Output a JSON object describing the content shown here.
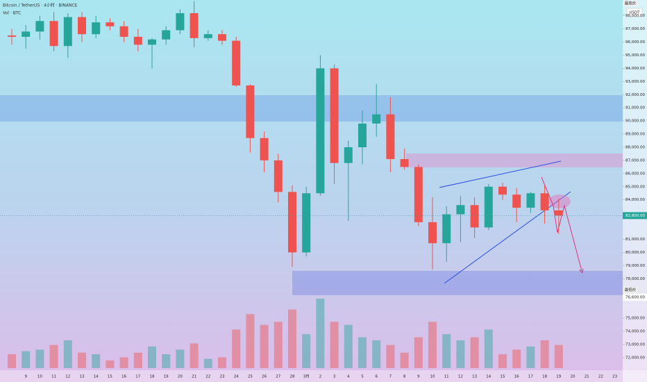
{
  "chart_data": {
    "type": "candlestick",
    "title": "Bitcoin / TetherUS · 4小时 · BINANCE",
    "subtitle": "Vol · BTC",
    "currency": "USDT",
    "high_tag": "最高价",
    "low_tag": "最低价",
    "low_price": {
      "value": 76600,
      "label": "76,600.00"
    },
    "last_price": {
      "value": 82800,
      "label": "82,800.00"
    },
    "up_color": "#26a69a",
    "down_color": "#ef5350",
    "grid": false,
    "ylim": [
      71200,
      99200
    ],
    "yticks": [
      {
        "value": 98000,
        "label": "98,000.00"
      },
      {
        "value": 97000,
        "label": "97,000.00"
      },
      {
        "value": 96000,
        "label": "96,000.00"
      },
      {
        "value": 95000,
        "label": "95,000.00"
      },
      {
        "value": 94000,
        "label": "94,000.00"
      },
      {
        "value": 93000,
        "label": "93,000.00"
      },
      {
        "value": 92000,
        "label": "92,000.00"
      },
      {
        "value": 91000,
        "label": "91,000.00"
      },
      {
        "value": 90000,
        "label": "90,000.00"
      },
      {
        "value": 89000,
        "label": "89,000.00"
      },
      {
        "value": 88000,
        "label": "88,000.00"
      },
      {
        "value": 87000,
        "label": "87,000.00"
      },
      {
        "value": 86000,
        "label": "86,000.00"
      },
      {
        "value": 85000,
        "label": "85,000.00"
      },
      {
        "value": 84000,
        "label": "84,000.00"
      },
      {
        "value": 81000,
        "label": "81,000.00"
      },
      {
        "value": 80000,
        "label": "80,000.00"
      },
      {
        "value": 79000,
        "label": "79,000.00"
      },
      {
        "value": 78000,
        "label": "78,000.00"
      },
      {
        "value": 75000,
        "label": "75,000.00"
      },
      {
        "value": 74000,
        "label": "74,000.00"
      },
      {
        "value": 73000,
        "label": "73,000.00"
      },
      {
        "value": 72000,
        "label": "72,000.00"
      }
    ],
    "categories": [
      null,
      "9",
      "10",
      "11",
      "12",
      "13",
      "14",
      "15",
      "16",
      "17",
      "18",
      "19",
      "20",
      "21",
      "22",
      "23",
      "24",
      "25",
      "26",
      "27",
      "28",
      "3月",
      "2",
      "3",
      "4",
      "5",
      "6",
      "7",
      "8",
      "9",
      "10",
      "11",
      "12",
      "13",
      "14",
      "15",
      "16",
      "17",
      "18",
      "19",
      "20",
      "21",
      "22",
      "23"
    ],
    "open": [
      96500,
      96400,
      96800,
      97600,
      95700,
      97900,
      96600,
      97500,
      97200,
      96400,
      95800,
      96200,
      96900,
      98200,
      96300,
      96600,
      96100,
      92700,
      88700,
      87000,
      84600,
      80000,
      84500,
      94000,
      86800,
      88000,
      89800,
      90500,
      87100,
      86500,
      82300,
      80700,
      82900,
      83600,
      81900,
      85000,
      84400,
      83400,
      84500,
      83200,
      null,
      null,
      null,
      null
    ],
    "high": [
      97000,
      97300,
      98000,
      98300,
      98200,
      98300,
      98000,
      97800,
      97600,
      97000,
      96300,
      97200,
      98500,
      99100,
      96900,
      96900,
      96400,
      92800,
      89200,
      87500,
      85100,
      85000,
      95000,
      94300,
      88500,
      90800,
      92800,
      91800,
      87900,
      86700,
      84200,
      83500,
      84300,
      84200,
      85200,
      85300,
      84900,
      84600,
      85100,
      84100,
      null,
      null,
      null,
      null
    ],
    "low": [
      95800,
      95500,
      96200,
      95300,
      94800,
      96000,
      96300,
      96900,
      96000,
      95300,
      94000,
      95800,
      96600,
      95600,
      96100,
      95800,
      92600,
      87600,
      86100,
      83800,
      78900,
      79700,
      84300,
      85200,
      82400,
      86700,
      88800,
      86100,
      86300,
      82000,
      78700,
      79300,
      80800,
      81100,
      81700,
      84000,
      82300,
      83000,
      82200,
      81400,
      null,
      null,
      null,
      null
    ],
    "close": [
      96400,
      96800,
      97600,
      95700,
      97900,
      96600,
      97500,
      97200,
      96400,
      95800,
      96200,
      96900,
      98200,
      96300,
      96600,
      96100,
      92700,
      88700,
      87000,
      84600,
      80000,
      84500,
      94000,
      86800,
      88000,
      89800,
      90500,
      87100,
      86500,
      82300,
      80700,
      82900,
      83600,
      81900,
      85000,
      84400,
      83400,
      84500,
      83200,
      82800,
      null,
      null,
      null,
      null
    ],
    "volume": [
      9000,
      11000,
      12000,
      15000,
      18000,
      10000,
      9000,
      5000,
      7000,
      10000,
      14000,
      9000,
      12000,
      16000,
      6000,
      7000,
      25000,
      35000,
      28000,
      30000,
      38000,
      22000,
      45000,
      30000,
      28000,
      20000,
      18000,
      15000,
      10000,
      20000,
      30000,
      22000,
      18000,
      20000,
      25000,
      9000,
      12000,
      14000,
      18000,
      15000,
      null,
      null,
      null,
      null
    ]
  }
}
